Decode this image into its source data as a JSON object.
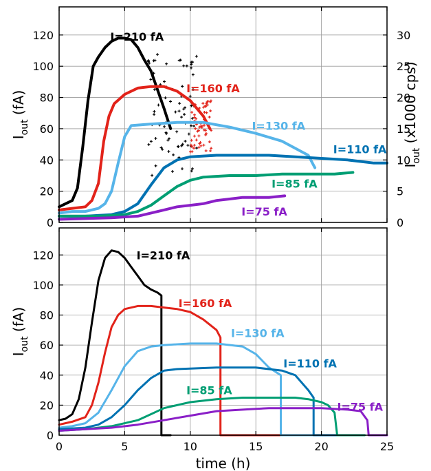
{
  "colors": {
    "210": "#000000",
    "160": "#e2231a",
    "130": "#56b4e9",
    "110": "#0072b2",
    "85": "#009e73",
    "75": "#8a1fc7"
  },
  "chart_data": [
    {
      "type": "scatter",
      "panel": "top",
      "xlim": [
        0,
        25
      ],
      "ylim": [
        0,
        138
      ],
      "ylabel_main": "I",
      "ylabel_sub": "out",
      "ylabel_unit": " (fA)",
      "y2label_main": "I",
      "y2label_sub": "out",
      "y2label_unit": " (x1000 cps)",
      "y2lim": [
        0,
        34.5
      ],
      "xticks": [
        0,
        5,
        10,
        15,
        20,
        25
      ],
      "yticks": [
        "0",
        "20",
        "40",
        "60",
        "80",
        "100",
        "120"
      ],
      "y2ticks": [
        "0",
        "5",
        "10",
        "15",
        "20",
        "25",
        "30"
      ],
      "grid": true,
      "series": [
        {
          "key": "210",
          "name": "I=210 fA",
          "label_at": [
            3.9,
            119
          ],
          "points": [
            [
              0,
              10
            ],
            [
              0.5,
              12
            ],
            [
              1,
              14
            ],
            [
              1.4,
              22
            ],
            [
              1.8,
              48
            ],
            [
              2.2,
              78
            ],
            [
              2.6,
              100
            ],
            [
              3,
              106
            ],
            [
              3.5,
              112
            ],
            [
              4,
              116
            ],
            [
              4.5,
              118
            ],
            [
              5,
              118
            ],
            [
              5.5,
              117
            ],
            [
              6,
              112
            ],
            [
              6.5,
              104
            ],
            [
              7,
              97
            ],
            [
              7.5,
              85
            ],
            [
              8,
              73
            ],
            [
              8.5,
              60
            ]
          ],
          "scatter": {
            "x0": 6.8,
            "x1": 10.5,
            "y0": 30,
            "y1": 110,
            "n": 80
          }
        },
        {
          "key": "160",
          "name": "I=160 fA",
          "label_at": [
            9.7,
            86
          ],
          "points": [
            [
              0,
              8
            ],
            [
              1,
              9
            ],
            [
              2,
              10
            ],
            [
              2.5,
              14
            ],
            [
              3,
              25
            ],
            [
              3.4,
              52
            ],
            [
              3.8,
              68
            ],
            [
              4.2,
              76
            ],
            [
              5,
              82
            ],
            [
              6,
              86
            ],
            [
              7,
              87
            ],
            [
              8,
              87
            ],
            [
              9,
              84
            ],
            [
              10,
              78
            ],
            [
              11,
              68
            ],
            [
              11.5,
              60
            ]
          ],
          "scatter": {
            "x0": 10,
            "x1": 11.6,
            "y0": 45,
            "y1": 78,
            "n": 60
          }
        },
        {
          "key": "130",
          "name": "I=130 fA",
          "label_at": [
            14.7,
            62
          ],
          "points": [
            [
              0,
              6
            ],
            [
              1,
              7
            ],
            [
              2,
              7
            ],
            [
              3,
              9
            ],
            [
              3.5,
              12
            ],
            [
              4,
              20
            ],
            [
              4.5,
              38
            ],
            [
              5,
              55
            ],
            [
              5.5,
              62
            ],
            [
              7,
              63
            ],
            [
              9,
              64
            ],
            [
              11,
              64
            ],
            [
              13,
              61
            ],
            [
              15,
              57
            ],
            [
              17,
              52
            ],
            [
              19,
              43
            ],
            [
              19.5,
              35
            ]
          ]
        },
        {
          "key": "110",
          "name": "I=110 fA",
          "label_at": [
            20.9,
            47
          ],
          "points": [
            [
              0,
              4
            ],
            [
              2,
              4
            ],
            [
              4,
              5
            ],
            [
              5,
              7
            ],
            [
              6,
              12
            ],
            [
              7,
              24
            ],
            [
              8,
              35
            ],
            [
              9,
              40
            ],
            [
              10,
              42
            ],
            [
              12,
              43
            ],
            [
              14,
              43
            ],
            [
              16,
              43
            ],
            [
              18,
              42
            ],
            [
              20,
              41
            ],
            [
              22,
              40
            ],
            [
              24,
              38
            ],
            [
              25,
              38
            ]
          ]
        },
        {
          "key": "85",
          "name": "I=85 fA",
          "label_at": [
            16.2,
            25
          ],
          "points": [
            [
              0,
              4
            ],
            [
              3,
              4
            ],
            [
              5,
              5
            ],
            [
              6,
              7
            ],
            [
              7,
              11
            ],
            [
              8,
              17
            ],
            [
              9,
              23
            ],
            [
              10,
              27
            ],
            [
              11,
              29
            ],
            [
              13,
              30
            ],
            [
              15,
              30
            ],
            [
              17,
              31
            ],
            [
              19,
              31
            ],
            [
              21,
              31
            ],
            [
              22.4,
              32
            ]
          ]
        },
        {
          "key": "75",
          "name": "I=75 fA",
          "label_at": [
            13.9,
            7
          ],
          "points": [
            [
              0,
              2
            ],
            [
              4,
              3
            ],
            [
              6,
              4
            ],
            [
              7,
              6
            ],
            [
              8,
              8
            ],
            [
              9,
              10
            ],
            [
              10,
              11
            ],
            [
              11,
              12
            ],
            [
              12,
              14
            ],
            [
              13,
              15
            ],
            [
              14,
              16
            ],
            [
              15,
              16
            ],
            [
              16,
              16
            ],
            [
              17.2,
              17
            ]
          ]
        }
      ]
    },
    {
      "type": "line",
      "panel": "bottom",
      "xlim": [
        0,
        25
      ],
      "ylim": [
        0,
        138
      ],
      "xlabel": "time (h)",
      "ylabel_main": "I",
      "ylabel_sub": "out",
      "ylabel_unit": " (fA)",
      "xticks": [
        "0",
        "5",
        "10",
        "15",
        "20",
        "25"
      ],
      "yticks": [
        "0",
        "20",
        "40",
        "60",
        "80",
        "100",
        "120"
      ],
      "grid": true,
      "series": [
        {
          "key": "210",
          "name": "I=210 fA",
          "label_at": [
            5.9,
            120
          ],
          "points": [
            [
              0,
              10
            ],
            [
              0.5,
              11
            ],
            [
              1,
              14
            ],
            [
              1.5,
              24
            ],
            [
              2,
              45
            ],
            [
              2.5,
              75
            ],
            [
              3,
              103
            ],
            [
              3.5,
              118
            ],
            [
              4,
              123
            ],
            [
              4.5,
              122
            ],
            [
              5,
              118
            ],
            [
              5.5,
              112
            ],
            [
              6,
              106
            ],
            [
              6.5,
              100
            ],
            [
              7,
              97
            ],
            [
              7.5,
              95
            ],
            [
              7.8,
              93
            ],
            [
              7.8,
              0
            ],
            [
              8.5,
              0
            ]
          ]
        },
        {
          "key": "160",
          "name": "I=160 fA",
          "label_at": [
            9.1,
            88
          ],
          "points": [
            [
              0,
              7
            ],
            [
              1,
              9
            ],
            [
              2,
              12
            ],
            [
              2.5,
              20
            ],
            [
              3,
              35
            ],
            [
              3.5,
              55
            ],
            [
              4,
              72
            ],
            [
              4.5,
              80
            ],
            [
              5,
              84
            ],
            [
              6,
              86
            ],
            [
              7,
              86
            ],
            [
              8,
              85
            ],
            [
              9,
              84
            ],
            [
              10,
              82
            ],
            [
              11,
              77
            ],
            [
              12,
              70
            ],
            [
              12.3,
              65
            ],
            [
              12.3,
              0
            ],
            [
              19,
              0
            ]
          ]
        },
        {
          "key": "130",
          "name": "I=130 fA",
          "label_at": [
            13.1,
            68
          ],
          "points": [
            [
              0,
              5
            ],
            [
              1,
              6
            ],
            [
              2,
              8
            ],
            [
              3,
              15
            ],
            [
              4,
              30
            ],
            [
              5,
              46
            ],
            [
              6,
              56
            ],
            [
              7,
              59
            ],
            [
              8,
              60
            ],
            [
              10,
              61
            ],
            [
              12,
              61
            ],
            [
              14,
              59
            ],
            [
              15,
              54
            ],
            [
              16,
              45
            ],
            [
              16.9,
              40
            ],
            [
              16.9,
              0
            ],
            [
              21.2,
              0
            ]
          ]
        },
        {
          "key": "110",
          "name": "I=110 fA",
          "label_at": [
            17.1,
            48
          ],
          "points": [
            [
              0,
              4
            ],
            [
              2,
              5
            ],
            [
              3,
              7
            ],
            [
              4,
              12
            ],
            [
              5,
              20
            ],
            [
              6,
              30
            ],
            [
              7,
              38
            ],
            [
              8,
              43
            ],
            [
              9,
              44
            ],
            [
              12,
              45
            ],
            [
              15,
              45
            ],
            [
              17,
              43
            ],
            [
              18,
              40
            ],
            [
              19,
              30
            ],
            [
              19.4,
              25
            ],
            [
              19.4,
              0
            ],
            [
              23.2,
              0
            ]
          ]
        },
        {
          "key": "85",
          "name": "I=85 fA",
          "label_at": [
            9.7,
            30
          ],
          "points": [
            [
              0,
              3
            ],
            [
              2,
              4
            ],
            [
              4,
              6
            ],
            [
              6,
              10
            ],
            [
              7,
              14
            ],
            [
              8,
              18
            ],
            [
              10,
              22
            ],
            [
              12,
              24
            ],
            [
              14,
              25
            ],
            [
              16,
              25
            ],
            [
              18,
              25
            ],
            [
              19,
              24
            ],
            [
              20,
              22
            ],
            [
              20.5,
              20
            ],
            [
              21,
              15
            ],
            [
              21.2,
              0
            ],
            [
              23.3,
              0
            ]
          ]
        },
        {
          "key": "75",
          "name": "I=75 fA",
          "label_at": [
            21.2,
            19
          ],
          "points": [
            [
              0,
              3
            ],
            [
              2,
              4
            ],
            [
              4,
              5
            ],
            [
              6,
              7
            ],
            [
              8,
              10
            ],
            [
              10,
              13
            ],
            [
              12,
              16
            ],
            [
              14,
              17
            ],
            [
              16,
              18
            ],
            [
              18,
              18
            ],
            [
              20,
              18
            ],
            [
              22,
              17
            ],
            [
              23,
              16
            ],
            [
              23.5,
              10
            ],
            [
              23.6,
              0
            ],
            [
              25,
              0
            ]
          ]
        }
      ]
    }
  ]
}
